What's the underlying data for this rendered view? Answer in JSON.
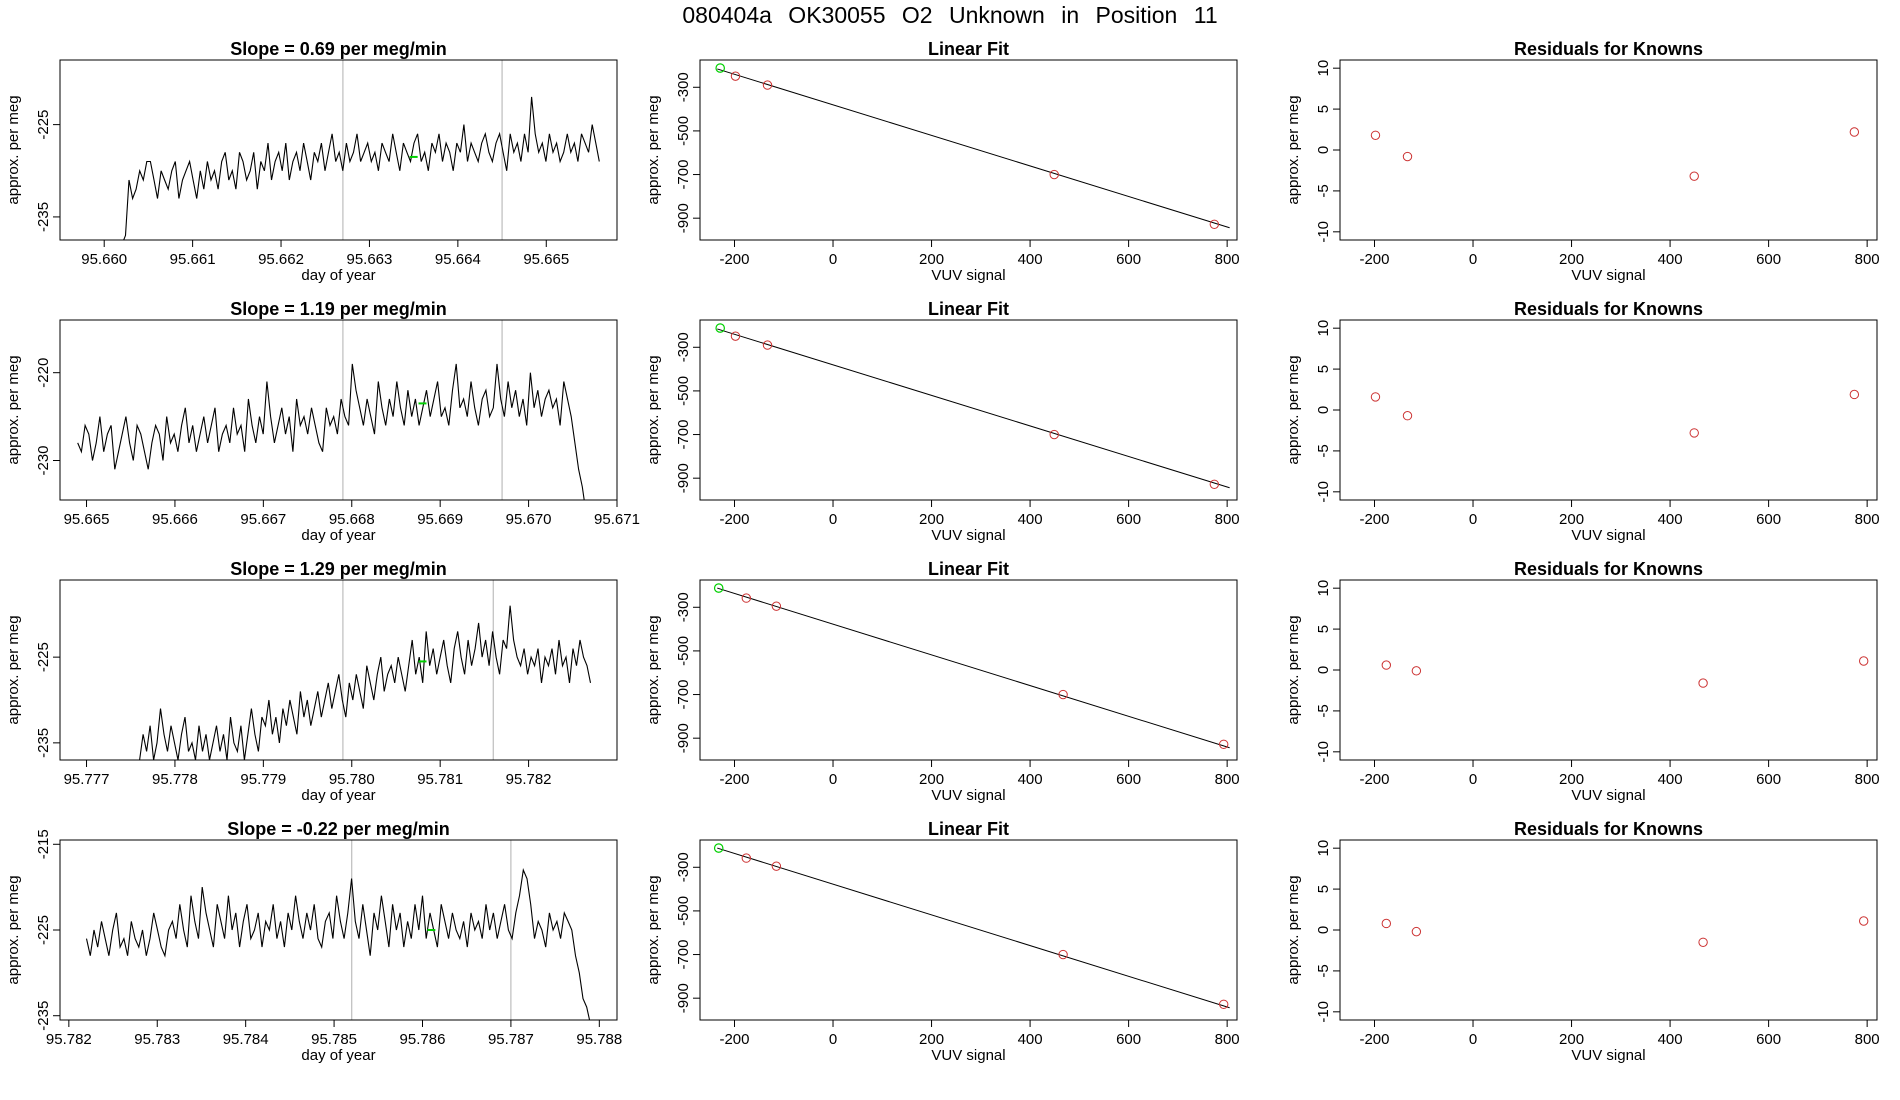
{
  "title": "080404a      OK30055    O2 Unknown in Position  11",
  "colors": {
    "series": "#000000",
    "marker": "#00d000",
    "known_point": "#cc3333",
    "gridline": "#b0b0b0",
    "fitline": "#000000",
    "axis": "#000000"
  },
  "chart_data": [
    {
      "type": "line",
      "row": 0,
      "column": 0,
      "title": "Slope =  0.69  per meg/min",
      "xlabel": "day of year",
      "ylabel": "approx. per meg",
      "xlim": [
        95.6595,
        95.6658
      ],
      "ylim": [
        -237.5,
        -218
      ],
      "x_ticks": [
        95.66,
        95.661,
        95.662,
        95.663,
        95.664,
        95.665
      ],
      "x_tick_labels": [
        "95.660",
        "95.661",
        "95.662",
        "95.663",
        "95.664",
        "95.665"
      ],
      "y_ticks": [
        -225,
        -235
      ],
      "y_tick_labels": [
        "-225",
        "-235"
      ],
      "vlines": [
        95.6627,
        95.6645
      ],
      "marker_point": [
        95.6635,
        -228.5
      ],
      "x_start": 95.6602,
      "x_end": 95.6656,
      "values": [
        -238,
        -237,
        -231,
        -233,
        -232,
        -230,
        -231,
        -229,
        -229,
        -231,
        -233,
        -230,
        -231,
        -232,
        -230,
        -229,
        -233,
        -231,
        -230,
        -229,
        -231,
        -233,
        -230,
        -232,
        -229,
        -231,
        -230,
        -232,
        -229,
        -228,
        -231,
        -230,
        -232,
        -228,
        -229,
        -231,
        -230,
        -228,
        -232,
        -229,
        -230,
        -227,
        -231,
        -229,
        -228,
        -230,
        -227,
        -231,
        -229,
        -228,
        -230,
        -227,
        -229,
        -231,
        -228,
        -229,
        -227,
        -230,
        -228,
        -226,
        -229,
        -228,
        -230,
        -227,
        -229,
        -228,
        -226,
        -229,
        -228,
        -227,
        -229,
        -228,
        -230,
        -227,
        -228,
        -229,
        -226,
        -228,
        -230,
        -227,
        -228,
        -229,
        -227,
        -226,
        -229,
        -228,
        -230,
        -227,
        -228,
        -226,
        -229,
        -227,
        -228,
        -230,
        -227,
        -228,
        -225,
        -229,
        -227,
        -228,
        -229,
        -227,
        -226,
        -228,
        -229,
        -227,
        -226,
        -228,
        -230,
        -226,
        -228,
        -227,
        -229,
        -226,
        -228,
        -222,
        -226,
        -228,
        -227,
        -229,
        -226,
        -228,
        -227,
        -229,
        -228,
        -226,
        -228,
        -227,
        -229,
        -226,
        -227,
        -228,
        -225,
        -227,
        -229
      ]
    },
    {
      "type": "scatter",
      "row": 0,
      "column": 1,
      "title": "Linear Fit",
      "xlabel": "VUV signal",
      "ylabel": "approx. per meg",
      "xlim": [
        -270,
        820
      ],
      "ylim": [
        -1000,
        -175
      ],
      "x_ticks": [
        -200,
        0,
        200,
        400,
        600,
        800
      ],
      "x_tick_labels": [
        "-200",
        "0",
        "200",
        "400",
        "600",
        "800"
      ],
      "y_ticks": [
        -300,
        -500,
        -700,
        -900
      ],
      "y_tick_labels": [
        "-300",
        "-500",
        "-700",
        "-900"
      ],
      "fit_line": [
        [
          -235,
          -216
        ],
        [
          805,
          -944
        ]
      ],
      "known_points": [
        [
          -198,
          -249
        ],
        [
          -133,
          -290
        ],
        [
          449,
          -700
        ],
        [
          774,
          -928
        ]
      ],
      "unknown_points": [
        [
          -229,
          -212
        ]
      ]
    },
    {
      "type": "scatter",
      "row": 0,
      "column": 2,
      "title": "Residuals for Knowns",
      "xlabel": "VUV signal",
      "ylabel": "approx. per meg",
      "xlim": [
        -270,
        820
      ],
      "ylim": [
        -11,
        11
      ],
      "x_ticks": [
        -200,
        0,
        200,
        400,
        600,
        800
      ],
      "x_tick_labels": [
        "-200",
        "0",
        "200",
        "400",
        "600",
        "800"
      ],
      "y_ticks": [
        10,
        5,
        0,
        -5,
        -10
      ],
      "y_tick_labels": [
        "10",
        "5",
        "0",
        "-5",
        "-10"
      ],
      "known_points": [
        [
          -198,
          1.8
        ],
        [
          -133,
          -0.8
        ],
        [
          449,
          -3.2
        ],
        [
          774,
          2.2
        ]
      ]
    },
    {
      "type": "line",
      "row": 1,
      "column": 0,
      "title": "Slope =  1.19  per meg/min",
      "xlabel": "day of year",
      "ylabel": "approx. per meg",
      "xlim": [
        95.6647,
        95.671
      ],
      "ylim": [
        -234.5,
        -214
      ],
      "x_ticks": [
        95.665,
        95.666,
        95.667,
        95.668,
        95.669,
        95.67,
        95.671
      ],
      "x_tick_labels": [
        "95.665",
        "95.666",
        "95.667",
        "95.668",
        "95.669",
        "95.670",
        "95.671"
      ],
      "y_ticks": [
        -220,
        -230
      ],
      "y_tick_labels": [
        "-220",
        "-230"
      ],
      "vlines": [
        95.6679,
        95.6697
      ],
      "marker_point": [
        95.6688,
        -223.5
      ],
      "x_start": 95.6649,
      "x_end": 95.67065,
      "values": [
        -228,
        -229,
        -226,
        -227,
        -230,
        -228,
        -225,
        -229,
        -227,
        -226,
        -231,
        -229,
        -227,
        -225,
        -228,
        -230,
        -226,
        -227,
        -229,
        -231,
        -228,
        -226,
        -227,
        -230,
        -225,
        -228,
        -227,
        -229,
        -226,
        -224,
        -228,
        -226,
        -229,
        -227,
        -225,
        -228,
        -226,
        -224,
        -229,
        -227,
        -226,
        -228,
        -224,
        -227,
        -226,
        -229,
        -223,
        -226,
        -228,
        -225,
        -227,
        -221,
        -225,
        -228,
        -226,
        -224,
        -227,
        -225,
        -229,
        -223,
        -226,
        -225,
        -227,
        -224,
        -226,
        -228,
        -229,
        -224,
        -226,
        -225,
        -227,
        -223,
        -225,
        -226,
        -219,
        -222,
        -224,
        -226,
        -223,
        -225,
        -227,
        -221,
        -224,
        -226,
        -223,
        -225,
        -221,
        -224,
        -226,
        -222,
        -225,
        -223,
        -226,
        -224,
        -222,
        -225,
        -223,
        -221,
        -225,
        -224,
        -226,
        -222,
        -219,
        -224,
        -223,
        -225,
        -221,
        -224,
        -226,
        -223,
        -222,
        -225,
        -224,
        -219,
        -223,
        -225,
        -221,
        -224,
        -222,
        -225,
        -223,
        -226,
        -220,
        -224,
        -222,
        -225,
        -223,
        -222,
        -224,
        -223,
        -226,
        -221,
        -223,
        -225,
        -228,
        -231,
        -233,
        -236
      ]
    },
    {
      "type": "scatter",
      "row": 1,
      "column": 1,
      "title": "Linear Fit",
      "xlabel": "VUV signal",
      "ylabel": "approx. per meg",
      "xlim": [
        -270,
        820
      ],
      "ylim": [
        -1000,
        -175
      ],
      "x_ticks": [
        -200,
        0,
        200,
        400,
        600,
        800
      ],
      "x_tick_labels": [
        "-200",
        "0",
        "200",
        "400",
        "600",
        "800"
      ],
      "y_ticks": [
        -300,
        -500,
        -700,
        -900
      ],
      "y_tick_labels": [
        "-300",
        "-500",
        "-700",
        "-900"
      ],
      "fit_line": [
        [
          -235,
          -216
        ],
        [
          805,
          -944
        ]
      ],
      "known_points": [
        [
          -198,
          -249
        ],
        [
          -133,
          -290
        ],
        [
          449,
          -700
        ],
        [
          774,
          -928
        ]
      ],
      "unknown_points": [
        [
          -229,
          -212
        ]
      ]
    },
    {
      "type": "scatter",
      "row": 1,
      "column": 2,
      "title": "Residuals for Knowns",
      "xlabel": "VUV signal",
      "ylabel": "approx. per meg",
      "xlim": [
        -270,
        820
      ],
      "ylim": [
        -11,
        11
      ],
      "x_ticks": [
        -200,
        0,
        200,
        400,
        600,
        800
      ],
      "x_tick_labels": [
        "-200",
        "0",
        "200",
        "400",
        "600",
        "800"
      ],
      "y_ticks": [
        10,
        5,
        0,
        -5,
        -10
      ],
      "y_tick_labels": [
        "10",
        "5",
        "0",
        "-5",
        "-10"
      ],
      "known_points": [
        [
          -198,
          1.6
        ],
        [
          -133,
          -0.7
        ],
        [
          449,
          -2.8
        ],
        [
          774,
          1.9
        ]
      ]
    },
    {
      "type": "line",
      "row": 2,
      "column": 0,
      "title": "Slope =  1.29  per meg/min",
      "xlabel": "day of year",
      "ylabel": "approx. per meg",
      "xlim": [
        95.7767,
        95.783
      ],
      "ylim": [
        -237,
        -216
      ],
      "x_ticks": [
        95.777,
        95.778,
        95.779,
        95.78,
        95.781,
        95.782
      ],
      "x_tick_labels": [
        "95.777",
        "95.778",
        "95.779",
        "95.780",
        "95.781",
        "95.782"
      ],
      "y_ticks": [
        -225,
        -235
      ],
      "y_tick_labels": [
        "-225",
        "-235"
      ],
      "vlines": [
        95.7799,
        95.7816
      ],
      "marker_point": [
        95.7808,
        -225.5
      ],
      "x_start": 95.7776,
      "x_end": 95.7827,
      "values": [
        -237,
        -234,
        -236,
        -233,
        -237,
        -235,
        -231,
        -234,
        -236,
        -233,
        -235,
        -237,
        -234,
        -232,
        -236,
        -235,
        -237,
        -233,
        -236,
        -234,
        -237,
        -235,
        -233,
        -236,
        -234,
        -237,
        -232,
        -235,
        -236,
        -233,
        -237,
        -234,
        -231,
        -234,
        -236,
        -232,
        -233,
        -230,
        -234,
        -232,
        -235,
        -231,
        -233,
        -230,
        -232,
        -234,
        -229,
        -232,
        -230,
        -233,
        -231,
        -229,
        -232,
        -230,
        -228,
        -231,
        -229,
        -227,
        -230,
        -232,
        -228,
        -230,
        -227,
        -229,
        -231,
        -226,
        -228,
        -230,
        -227,
        -225,
        -229,
        -227,
        -226,
        -228,
        -225,
        -227,
        -229,
        -226,
        -223,
        -227,
        -225,
        -228,
        -222,
        -226,
        -224,
        -227,
        -225,
        -223,
        -226,
        -228,
        -224,
        -222,
        -225,
        -227,
        -223,
        -226,
        -224,
        -221,
        -225,
        -223,
        -226,
        -222,
        -225,
        -227,
        -223,
        -224,
        -219,
        -223,
        -225,
        -226,
        -224,
        -227,
        -225,
        -226,
        -224,
        -228,
        -225,
        -226,
        -224,
        -227,
        -223,
        -226,
        -225,
        -228,
        -224,
        -226,
        -223,
        -225,
        -226,
        -228
      ]
    },
    {
      "type": "scatter",
      "row": 2,
      "column": 1,
      "title": "Linear Fit",
      "xlabel": "VUV signal",
      "ylabel": "approx. per meg",
      "xlim": [
        -270,
        820
      ],
      "ylim": [
        -1000,
        -175
      ],
      "x_ticks": [
        -200,
        0,
        200,
        400,
        600,
        800
      ],
      "x_tick_labels": [
        "-200",
        "0",
        "200",
        "400",
        "600",
        "800"
      ],
      "y_ticks": [
        -300,
        -500,
        -700,
        -900
      ],
      "y_tick_labels": [
        "-300",
        "-500",
        "-700",
        "-900"
      ],
      "fit_line": [
        [
          -235,
          -212
        ],
        [
          805,
          -944
        ]
      ],
      "known_points": [
        [
          -176,
          -258
        ],
        [
          -115,
          -295
        ],
        [
          467,
          -700
        ],
        [
          793,
          -928
        ]
      ],
      "unknown_points": [
        [
          -232,
          -212
        ]
      ]
    },
    {
      "type": "scatter",
      "row": 2,
      "column": 2,
      "title": "Residuals for Knowns",
      "xlabel": "VUV signal",
      "ylabel": "approx. per meg",
      "xlim": [
        -270,
        820
      ],
      "ylim": [
        -11,
        11
      ],
      "x_ticks": [
        -200,
        0,
        200,
        400,
        600,
        800
      ],
      "x_tick_labels": [
        "-200",
        "0",
        "200",
        "400",
        "600",
        "800"
      ],
      "y_ticks": [
        10,
        5,
        0,
        -5,
        -10
      ],
      "y_tick_labels": [
        "10",
        "5",
        "0",
        "-5",
        "-10"
      ],
      "known_points": [
        [
          -176,
          0.6
        ],
        [
          -115,
          -0.1
        ],
        [
          467,
          -1.6
        ],
        [
          793,
          1.1
        ]
      ]
    },
    {
      "type": "line",
      "row": 3,
      "column": 0,
      "title": "Slope =  -0.22  per meg/min",
      "xlabel": "day of year",
      "ylabel": "approx. per meg",
      "xlim": [
        95.7819,
        95.7882
      ],
      "ylim": [
        -235.5,
        -214.5
      ],
      "x_ticks": [
        95.782,
        95.783,
        95.784,
        95.785,
        95.786,
        95.787,
        95.788
      ],
      "x_tick_labels": [
        "95.782",
        "95.783",
        "95.784",
        "95.785",
        "95.786",
        "95.787",
        "95.788"
      ],
      "y_ticks": [
        -215,
        -225,
        -235
      ],
      "y_tick_labels": [
        "-215",
        "-225",
        "-235"
      ],
      "vlines": [
        95.7852,
        95.787
      ],
      "marker_point": [
        95.7861,
        -225
      ],
      "x_start": 95.7822,
      "x_end": 95.7879,
      "values": [
        -226,
        -228,
        -225,
        -227,
        -224,
        -226,
        -228,
        -225,
        -223,
        -227,
        -226,
        -228,
        -224,
        -226,
        -227,
        -225,
        -228,
        -226,
        -223,
        -225,
        -227,
        -228,
        -225,
        -224,
        -226,
        -222,
        -225,
        -227,
        -221,
        -224,
        -226,
        -220,
        -223,
        -225,
        -227,
        -222,
        -224,
        -226,
        -221,
        -225,
        -223,
        -227,
        -224,
        -222,
        -226,
        -225,
        -223,
        -227,
        -224,
        -225,
        -222,
        -226,
        -224,
        -227,
        -223,
        -225,
        -221,
        -224,
        -226,
        -223,
        -225,
        -222,
        -226,
        -227,
        -224,
        -223,
        -226,
        -221,
        -224,
        -226,
        -223,
        -219,
        -224,
        -226,
        -222,
        -225,
        -228,
        -223,
        -225,
        -221,
        -224,
        -227,
        -222,
        -225,
        -223,
        -227,
        -224,
        -226,
        -222,
        -225,
        -221,
        -226,
        -223,
        -225,
        -227,
        -222,
        -224,
        -226,
        -223,
        -225,
        -226,
        -224,
        -227,
        -223,
        -225,
        -224,
        -226,
        -222,
        -225,
        -223,
        -226,
        -224,
        -222,
        -225,
        -226,
        -223,
        -221,
        -218,
        -219,
        -222,
        -226,
        -224,
        -225,
        -227,
        -223,
        -225,
        -224,
        -226,
        -223,
        -224,
        -225,
        -228,
        -230,
        -233,
        -234,
        -236
      ]
    },
    {
      "type": "scatter",
      "row": 3,
      "column": 1,
      "title": "Linear Fit",
      "xlabel": "VUV signal",
      "ylabel": "approx. per meg",
      "xlim": [
        -270,
        820
      ],
      "ylim": [
        -1000,
        -175
      ],
      "x_ticks": [
        -200,
        0,
        200,
        400,
        600,
        800
      ],
      "x_tick_labels": [
        "-200",
        "0",
        "200",
        "400",
        "600",
        "800"
      ],
      "y_ticks": [
        -300,
        -500,
        -700,
        -900
      ],
      "y_tick_labels": [
        "-300",
        "-500",
        "-700",
        "-900"
      ],
      "fit_line": [
        [
          -235,
          -212
        ],
        [
          805,
          -944
        ]
      ],
      "known_points": [
        [
          -176,
          -258
        ],
        [
          -115,
          -295
        ],
        [
          467,
          -700
        ],
        [
          793,
          -928
        ]
      ],
      "unknown_points": [
        [
          -232,
          -212
        ]
      ]
    },
    {
      "type": "scatter",
      "row": 3,
      "column": 2,
      "title": "Residuals for Knowns",
      "xlabel": "VUV signal",
      "ylabel": "approx. per meg",
      "xlim": [
        -270,
        820
      ],
      "ylim": [
        -11,
        11
      ],
      "x_ticks": [
        -200,
        0,
        200,
        400,
        600,
        800
      ],
      "x_tick_labels": [
        "-200",
        "0",
        "200",
        "400",
        "600",
        "800"
      ],
      "y_ticks": [
        10,
        5,
        0,
        -5,
        -10
      ],
      "y_tick_labels": [
        "10",
        "5",
        "0",
        "-5",
        "-10"
      ],
      "known_points": [
        [
          -176,
          0.8
        ],
        [
          -115,
          -0.2
        ],
        [
          467,
          -1.5
        ],
        [
          793,
          1.1
        ]
      ]
    }
  ]
}
